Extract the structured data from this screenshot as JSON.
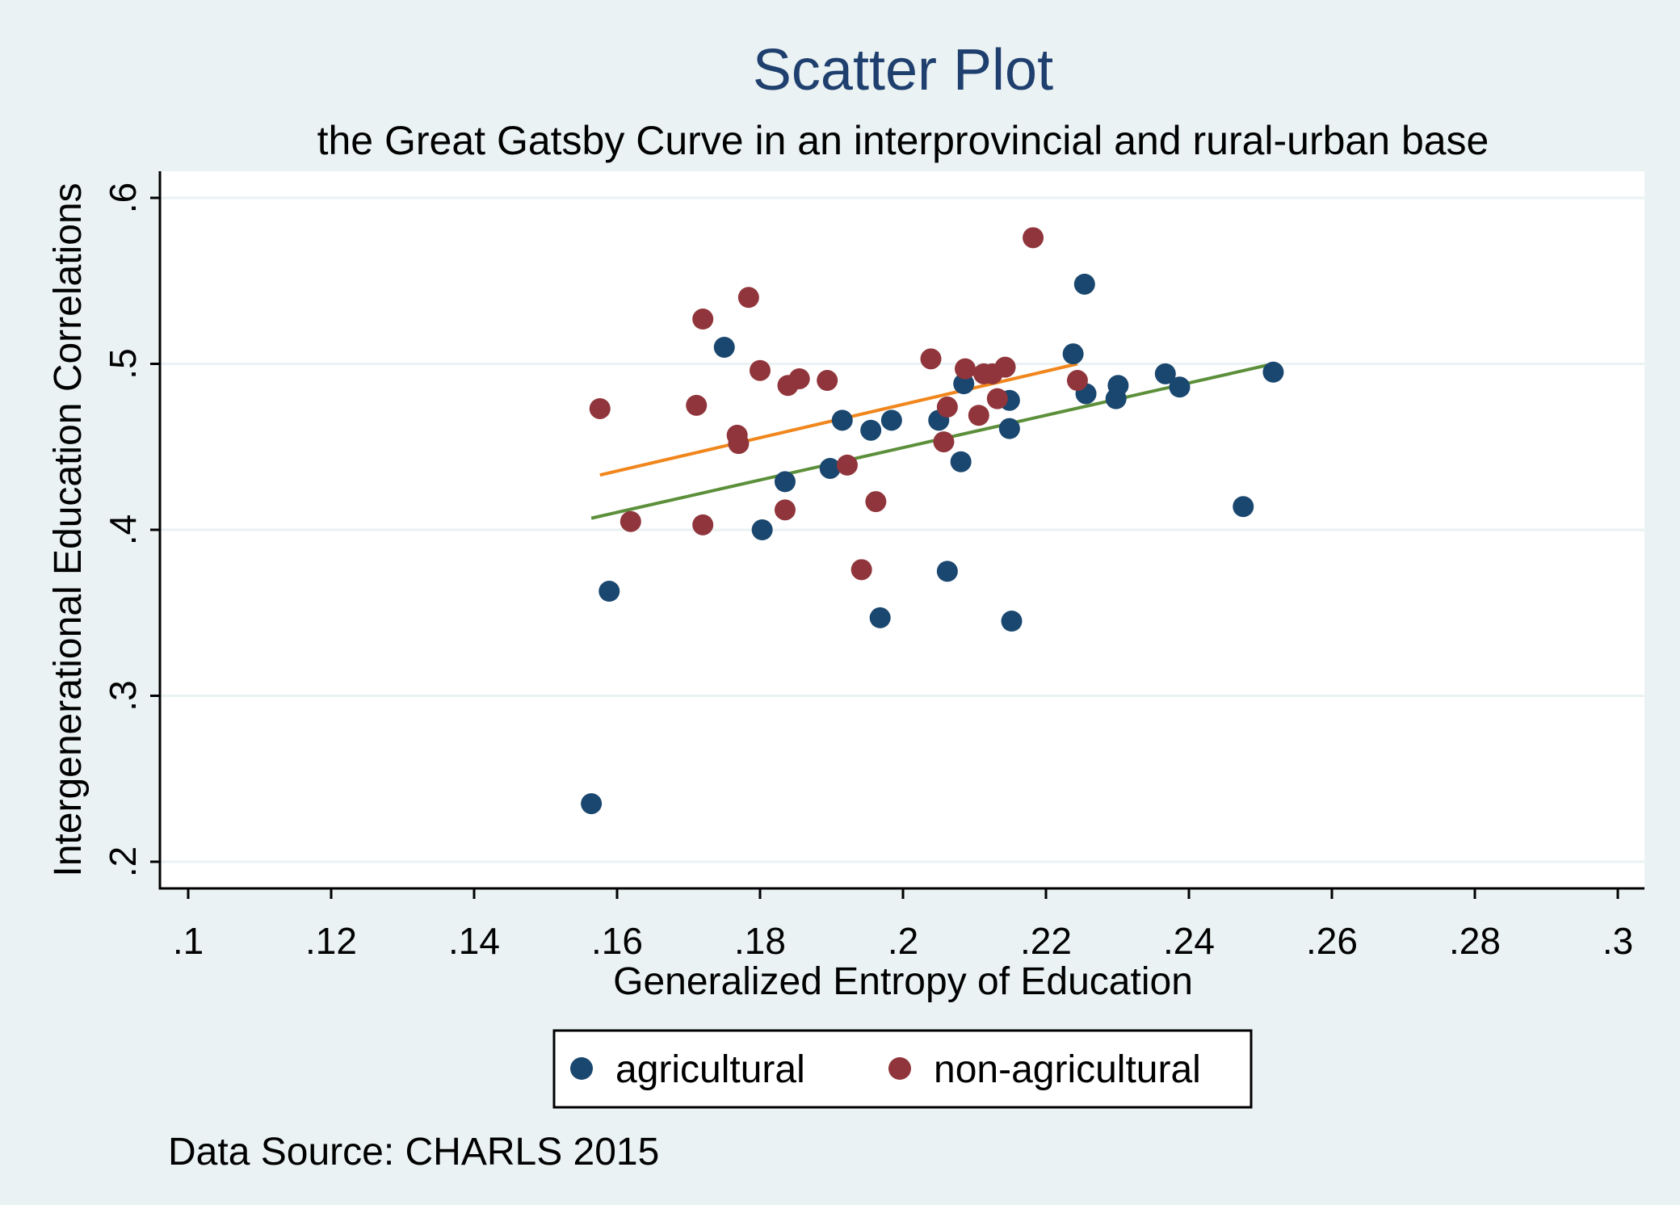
{
  "chart_data": {
    "type": "scatter",
    "title": "Scatter Plot",
    "subtitle": "the Great Gatsby Curve in an interprovincial and rural-urban base",
    "xlabel": "Generalized Entropy of Education",
    "ylabel": "Intergenerational Education Correlations",
    "xlim": [
      0.1,
      0.3
    ],
    "ylim": [
      0.2,
      0.6
    ],
    "x_ticks": [
      0.1,
      0.12,
      0.14,
      0.16,
      0.18,
      0.2,
      0.22,
      0.24,
      0.26,
      0.28,
      0.3
    ],
    "x_tick_labels": [
      ".1",
      ".12",
      ".14",
      ".16",
      ".18",
      ".2",
      ".22",
      ".24",
      ".26",
      ".28",
      ".3"
    ],
    "y_ticks": [
      0.2,
      0.3,
      0.4,
      0.5,
      0.6
    ],
    "y_tick_labels": [
      ".2",
      ".3",
      ".4",
      ".5",
      ".6"
    ],
    "grid": true,
    "legend_position": "bottom",
    "note": "Data Source: CHARLS 2015",
    "series": [
      {
        "name": "agricultural",
        "color": "#1a476f",
        "points": [
          [
            0.1564,
            0.235
          ],
          [
            0.1589,
            0.363
          ],
          [
            0.175,
            0.51
          ],
          [
            0.1803,
            0.4
          ],
          [
            0.1835,
            0.429
          ],
          [
            0.1898,
            0.437
          ],
          [
            0.1915,
            0.466
          ],
          [
            0.1955,
            0.46
          ],
          [
            0.1968,
            0.347
          ],
          [
            0.1984,
            0.466
          ],
          [
            0.205,
            0.466
          ],
          [
            0.2062,
            0.375
          ],
          [
            0.2081,
            0.441
          ],
          [
            0.2085,
            0.488
          ],
          [
            0.2149,
            0.478
          ],
          [
            0.2149,
            0.461
          ],
          [
            0.2152,
            0.345
          ],
          [
            0.2238,
            0.506
          ],
          [
            0.2254,
            0.548
          ],
          [
            0.2256,
            0.482
          ],
          [
            0.2298,
            0.479
          ],
          [
            0.2301,
            0.487
          ],
          [
            0.2367,
            0.494
          ],
          [
            0.2387,
            0.486
          ],
          [
            0.2476,
            0.414
          ],
          [
            0.2518,
            0.495
          ]
        ],
        "fit": [
          [
            0.1564,
            0.407
          ],
          [
            0.2518,
            0.5
          ]
        ]
      },
      {
        "name": "non-agricultural",
        "color": "#90353b",
        "points": [
          [
            0.1576,
            0.473
          ],
          [
            0.1619,
            0.405
          ],
          [
            0.1711,
            0.475
          ],
          [
            0.172,
            0.403
          ],
          [
            0.172,
            0.527
          ],
          [
            0.1768,
            0.457
          ],
          [
            0.177,
            0.452
          ],
          [
            0.1784,
            0.54
          ],
          [
            0.18,
            0.496
          ],
          [
            0.1835,
            0.412
          ],
          [
            0.1839,
            0.487
          ],
          [
            0.1855,
            0.491
          ],
          [
            0.1894,
            0.49
          ],
          [
            0.1922,
            0.439
          ],
          [
            0.1942,
            0.376
          ],
          [
            0.1962,
            0.417
          ],
          [
            0.2039,
            0.503
          ],
          [
            0.2057,
            0.453
          ],
          [
            0.2062,
            0.474
          ],
          [
            0.2087,
            0.497
          ],
          [
            0.2106,
            0.469
          ],
          [
            0.2113,
            0.494
          ],
          [
            0.2125,
            0.494
          ],
          [
            0.2132,
            0.479
          ],
          [
            0.2143,
            0.498
          ],
          [
            0.2182,
            0.576
          ],
          [
            0.2244,
            0.49
          ]
        ],
        "fit": [
          [
            0.1576,
            0.433
          ],
          [
            0.2244,
            0.5
          ]
        ]
      }
    ],
    "fit_colors": [
      "#5c8f3a",
      "#f0861c"
    ]
  }
}
